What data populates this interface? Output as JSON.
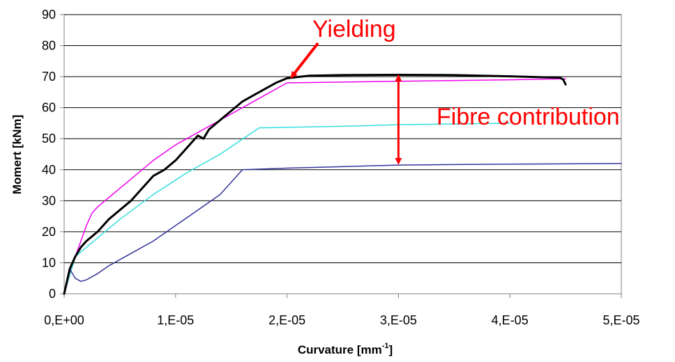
{
  "chart_data": {
    "type": "line",
    "title": "",
    "xlabel": "Curvature [mm",
    "xlabel_sup": "-1",
    "xlabel_suffix": "]",
    "ylabel": "Momert [kNm]",
    "xlim": [
      0,
      5e-05
    ],
    "ylim": [
      0,
      90
    ],
    "grid": true,
    "x_ticks": [
      0,
      1e-05,
      2e-05,
      3e-05,
      4e-05,
      5e-05
    ],
    "x_tick_labels": [
      "0,E+00",
      "1,E-05",
      "2,E-05",
      "3,E-05",
      "4,E-05",
      "5,E-05"
    ],
    "y_ticks": [
      0,
      10,
      20,
      30,
      40,
      50,
      60,
      70,
      80,
      90
    ],
    "y_tick_labels": [
      "0",
      "10",
      "20",
      "30",
      "40",
      "50",
      "60",
      "70",
      "80",
      "90"
    ],
    "series": [
      {
        "color": "#000000",
        "width": 3,
        "points": [
          [
            0,
            0
          ],
          [
            5e-07,
            8
          ],
          [
            1e-06,
            12
          ],
          [
            1.5e-06,
            15
          ],
          [
            2e-06,
            17
          ],
          [
            2.5e-06,
            18.5
          ],
          [
            3e-06,
            20
          ],
          [
            3.5e-06,
            22
          ],
          [
            4e-06,
            24
          ],
          [
            5e-06,
            27
          ],
          [
            6e-06,
            30
          ],
          [
            7e-06,
            34
          ],
          [
            8e-06,
            38
          ],
          [
            9e-06,
            40
          ],
          [
            1e-05,
            43
          ],
          [
            1.1e-05,
            47
          ],
          [
            1.15e-05,
            49
          ],
          [
            1.2e-05,
            51
          ],
          [
            1.25e-05,
            50
          ],
          [
            1.3e-05,
            53
          ],
          [
            1.4e-05,
            56
          ],
          [
            1.5e-05,
            59
          ],
          [
            1.6e-05,
            62
          ],
          [
            1.7e-05,
            64
          ],
          [
            1.8e-05,
            66
          ],
          [
            1.9e-05,
            68
          ],
          [
            2e-05,
            69.5
          ],
          [
            2.2e-05,
            70.3
          ],
          [
            2.5e-05,
            70.5
          ],
          [
            3e-05,
            70.6
          ],
          [
            3.5e-05,
            70.5
          ],
          [
            4e-05,
            70.1
          ],
          [
            4.3e-05,
            69.8
          ],
          [
            4.45e-05,
            69.7
          ],
          [
            4.48e-05,
            69
          ],
          [
            4.5e-05,
            67.5
          ]
        ]
      },
      {
        "color": "#ee00ee",
        "width": 1.5,
        "points": [
          [
            0,
            0
          ],
          [
            1e-06,
            12
          ],
          [
            2e-06,
            22
          ],
          [
            2.5e-06,
            26
          ],
          [
            3e-06,
            28
          ],
          [
            4e-06,
            31
          ],
          [
            6e-06,
            37
          ],
          [
            8e-06,
            43
          ],
          [
            1e-05,
            48
          ],
          [
            1.2e-05,
            52
          ],
          [
            1.4e-05,
            56
          ],
          [
            1.6e-05,
            60
          ],
          [
            1.8e-05,
            64
          ],
          [
            2e-05,
            68
          ],
          [
            3e-05,
            68.5
          ],
          [
            4e-05,
            69
          ],
          [
            4.5e-05,
            69.3
          ]
        ]
      },
      {
        "color": "#33dddd",
        "width": 1.5,
        "points": [
          [
            0,
            0
          ],
          [
            1e-06,
            12
          ],
          [
            2e-06,
            15
          ],
          [
            3e-06,
            18
          ],
          [
            5e-06,
            24
          ],
          [
            8e-06,
            32
          ],
          [
            1.1e-05,
            39
          ],
          [
            1.4e-05,
            45
          ],
          [
            1.75e-05,
            53.5
          ],
          [
            2.5e-05,
            54
          ],
          [
            3e-05,
            54.5
          ],
          [
            4e-05,
            55
          ]
        ]
      },
      {
        "color": "#333399",
        "width": 1.5,
        "points": [
          [
            0,
            0
          ],
          [
            5e-07,
            8
          ],
          [
            1e-06,
            5
          ],
          [
            1.5e-06,
            4
          ],
          [
            2e-06,
            4.5
          ],
          [
            3e-06,
            6.5
          ],
          [
            4e-06,
            9
          ],
          [
            6e-06,
            13
          ],
          [
            8e-06,
            17
          ],
          [
            1e-05,
            22
          ],
          [
            1.2e-05,
            27
          ],
          [
            1.4e-05,
            32
          ],
          [
            1.6e-05,
            40
          ],
          [
            2e-05,
            40.5
          ],
          [
            2.5e-05,
            41
          ],
          [
            3e-05,
            41.5
          ],
          [
            4e-05,
            41.8
          ],
          [
            5e-05,
            42
          ]
        ]
      }
    ],
    "annotations": {
      "yielding": "Yielding",
      "fibre": "Fibre contribution",
      "yielding_arrow_tip": [
        2.05e-05,
        70.3
      ],
      "fibre_arrow_x": 3e-05,
      "fibre_arrow_range": [
        41.8,
        70.5
      ],
      "arrow_color": "#ff0000"
    }
  }
}
